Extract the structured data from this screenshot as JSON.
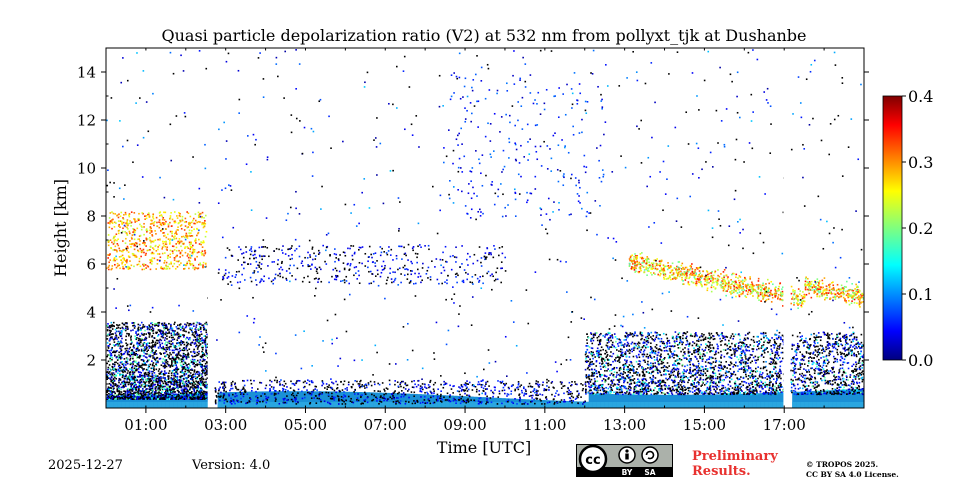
{
  "chart_data": {
    "type": "heatmap",
    "title": "Quasi particle depolarization ratio (V2) at 532 nm from pollyxt_tjk at Dushanbe",
    "xlabel": "Time [UTC]",
    "ylabel": "Height [km]",
    "xlim_hours": [
      0,
      19
    ],
    "ylim_km": [
      0,
      15
    ],
    "x_ticks": [
      {
        "hour": 1,
        "label": "01:00"
      },
      {
        "hour": 3,
        "label": "03:00"
      },
      {
        "hour": 5,
        "label": "05:00"
      },
      {
        "hour": 7,
        "label": "07:00"
      },
      {
        "hour": 9,
        "label": "09:00"
      },
      {
        "hour": 11,
        "label": "11:00"
      },
      {
        "hour": 13,
        "label": "13:00"
      },
      {
        "hour": 15,
        "label": "15:00"
      },
      {
        "hour": 17,
        "label": "17:00"
      }
    ],
    "y_ticks": [
      {
        "km": 2,
        "label": "2"
      },
      {
        "km": 4,
        "label": "4"
      },
      {
        "km": 6,
        "label": "6"
      },
      {
        "km": 8,
        "label": "8"
      },
      {
        "km": 10,
        "label": "10"
      },
      {
        "km": 12,
        "label": "12"
      },
      {
        "km": 14,
        "label": "14"
      }
    ],
    "colorbar": {
      "range": [
        0.0,
        0.4
      ],
      "ticks": [
        {
          "value": 0.0,
          "label": "0.0"
        },
        {
          "value": 0.1,
          "label": "0.1"
        },
        {
          "value": 0.2,
          "label": "0.2"
        },
        {
          "value": 0.3,
          "label": "0.3"
        },
        {
          "value": 0.4,
          "label": "0.4"
        }
      ],
      "colormap": "jet"
    },
    "data_gaps_hours": [
      [
        2.55,
        2.72
      ],
      [
        16.98,
        17.15
      ]
    ],
    "features": [
      {
        "name": "boundary layer (low depol)",
        "t": [
          0,
          19
        ],
        "height_km": [
          0,
          1.0
        ],
        "value_approx": 0.02
      },
      {
        "name": "aerosol layer night",
        "t": [
          0,
          2.5
        ],
        "height_km": [
          0.3,
          3.5
        ],
        "value_approx": 0.05
      },
      {
        "name": "elevated dust layer",
        "t": [
          0,
          2.5
        ],
        "height_km": [
          6,
          8
        ],
        "value_approx": 0.28
      },
      {
        "name": "aerosol layer afternoon",
        "t": [
          12,
          19
        ],
        "height_km": [
          0.8,
          3
        ],
        "value_approx": 0.05
      },
      {
        "name": "elevated dust layer afternoon",
        "t": [
          13,
          19
        ],
        "height_km": [
          4,
          6
        ],
        "value_approx": 0.3
      }
    ]
  },
  "footer": {
    "date": "2025-12-27",
    "version": "Version: 4.0",
    "preliminary": [
      "Preliminary",
      "Results."
    ],
    "copyright": [
      "© TROPOS 2025.",
      "CC BY SA 4.0 License."
    ],
    "badge": {
      "cc": "cc",
      "by": "BY",
      "sa": "SA"
    }
  }
}
